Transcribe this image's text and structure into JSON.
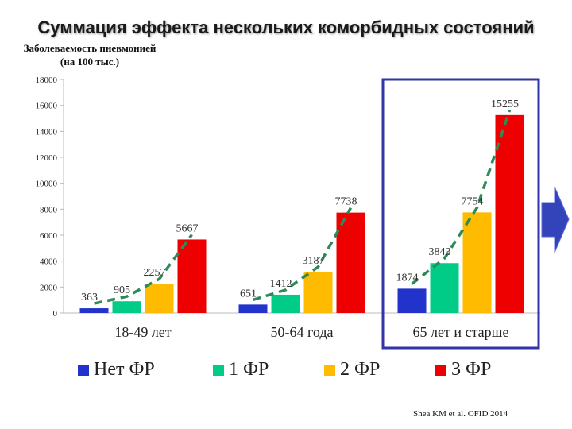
{
  "title": "Суммация эффекта нескольких коморбидных состояний",
  "ylabel_line1": "Заболеваемость пневмонией",
  "ylabel_line2": "(на 100 тыс.)",
  "source": "Shea KM et al. OFID 2014",
  "colors": {
    "series": [
      "#2233cc",
      "#00cc88",
      "#ffbb00",
      "#ee0000"
    ],
    "trend": "#2e8b57",
    "highlight_box": "#3333aa",
    "arrow": "#3344bb"
  },
  "chart_data": {
    "type": "bar",
    "categories": [
      "18-49 лет",
      "50-64 года",
      "65 лет и старше"
    ],
    "series": [
      {
        "name": "Нет ФР",
        "values": [
          363,
          651,
          1874
        ]
      },
      {
        "name": "1 ФР",
        "values": [
          905,
          1412,
          3843
        ]
      },
      {
        "name": "2 ФР",
        "values": [
          2257,
          3187,
          7754
        ]
      },
      {
        "name": "3 ФР",
        "values": [
          5667,
          7738,
          15255
        ]
      }
    ],
    "ylim": [
      0,
      18000
    ],
    "yticks": [
      0,
      2000,
      4000,
      6000,
      8000,
      10000,
      12000,
      14000,
      16000,
      18000
    ],
    "grid": false,
    "legend_position": "bottom"
  }
}
